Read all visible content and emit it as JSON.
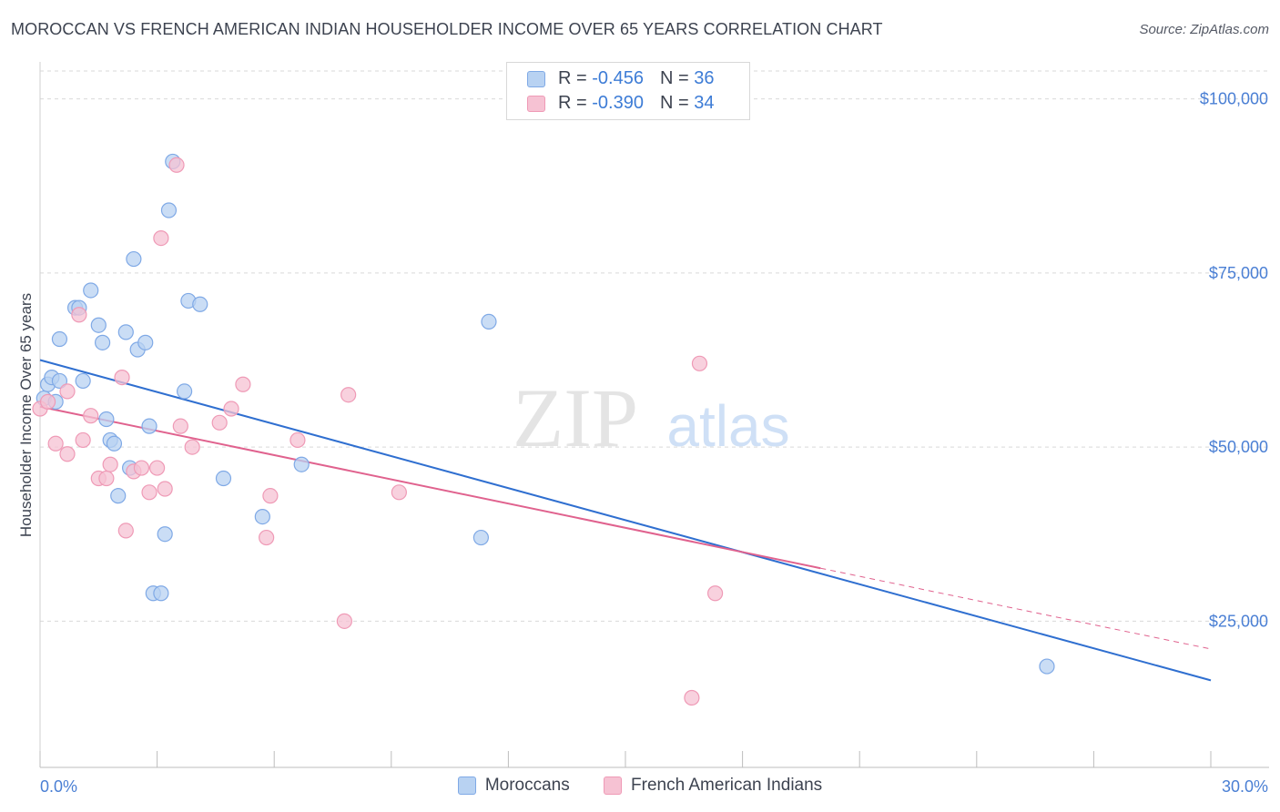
{
  "title": "MOROCCAN VS FRENCH AMERICAN INDIAN HOUSEHOLDER INCOME OVER 65 YEARS CORRELATION CHART",
  "source": "Source: ZipAtlas.com",
  "watermark": {
    "zip": "ZIP",
    "atlas": "atlas"
  },
  "colors": {
    "blue_fill": "#b8d2f2",
    "blue_stroke": "#7fa9e6",
    "blue_line": "#2f6fd0",
    "pink_fill": "#f6c2d3",
    "pink_stroke": "#ef9ab6",
    "pink_line": "#e0628e",
    "tick_text": "#4a7fd4",
    "grid": "#d9d9d9"
  },
  "legend": {
    "rows": [
      {
        "r_label": "R = ",
        "r_value": "-0.456",
        "n_label": "N = ",
        "n_value": "36"
      },
      {
        "r_label": "R = ",
        "r_value": "-0.390",
        "n_label": "N = ",
        "n_value": "34"
      }
    ]
  },
  "bottom_legend": [
    "Moroccans",
    "French American Indians"
  ],
  "chart_data": {
    "type": "scatter",
    "title": "MOROCCAN VS FRENCH AMERICAN INDIAN HOUSEHOLDER INCOME OVER 65 YEARS CORRELATION CHART",
    "xlabel": "",
    "ylabel": "Householder Income Over 65 years",
    "xlim": [
      0,
      30
    ],
    "ylim": [
      4000,
      104000
    ],
    "x_ticks": [
      "0.0%",
      "30.0%"
    ],
    "y_ticks": [
      {
        "value": 25000,
        "label": "$25,000"
      },
      {
        "value": 50000,
        "label": "$50,000"
      },
      {
        "value": 75000,
        "label": "$75,000"
      },
      {
        "value": 100000,
        "label": "$100,000"
      }
    ],
    "grid": true,
    "legend_position": "top-center",
    "series": [
      {
        "name": "Moroccans",
        "points": [
          [
            0.1,
            57000
          ],
          [
            0.2,
            59000
          ],
          [
            0.3,
            60000
          ],
          [
            0.5,
            59500
          ],
          [
            0.5,
            65500
          ],
          [
            0.9,
            70000
          ],
          [
            1.0,
            70000
          ],
          [
            1.1,
            59500
          ],
          [
            1.3,
            72500
          ],
          [
            1.5,
            67500
          ],
          [
            1.6,
            65000
          ],
          [
            1.7,
            54000
          ],
          [
            1.8,
            51000
          ],
          [
            2.0,
            43000
          ],
          [
            2.2,
            66500
          ],
          [
            2.3,
            47000
          ],
          [
            2.4,
            77000
          ],
          [
            2.5,
            64000
          ],
          [
            2.7,
            65000
          ],
          [
            2.8,
            53000
          ],
          [
            2.9,
            29000
          ],
          [
            3.1,
            29000
          ],
          [
            3.2,
            37500
          ],
          [
            3.3,
            84000
          ],
          [
            3.4,
            91000
          ],
          [
            3.7,
            58000
          ],
          [
            3.8,
            71000
          ],
          [
            4.1,
            70500
          ],
          [
            4.7,
            45500
          ],
          [
            5.7,
            40000
          ],
          [
            6.7,
            47500
          ],
          [
            11.5,
            68000
          ],
          [
            11.3,
            37000
          ],
          [
            25.8,
            18500
          ],
          [
            0.4,
            56500
          ],
          [
            1.9,
            50500
          ]
        ],
        "trend": {
          "x": [
            0,
            30
          ],
          "y": [
            62500,
            16500
          ]
        }
      },
      {
        "name": "French American Indians",
        "points": [
          [
            0.0,
            55500
          ],
          [
            0.2,
            56500
          ],
          [
            0.4,
            50500
          ],
          [
            0.7,
            49000
          ],
          [
            0.7,
            58000
          ],
          [
            1.0,
            69000
          ],
          [
            1.1,
            51000
          ],
          [
            1.3,
            54500
          ],
          [
            1.5,
            45500
          ],
          [
            1.7,
            45500
          ],
          [
            1.8,
            47500
          ],
          [
            2.1,
            60000
          ],
          [
            2.2,
            38000
          ],
          [
            2.4,
            46500
          ],
          [
            2.6,
            47000
          ],
          [
            2.8,
            43500
          ],
          [
            3.0,
            47000
          ],
          [
            3.1,
            80000
          ],
          [
            3.2,
            44000
          ],
          [
            3.5,
            90500
          ],
          [
            3.6,
            53000
          ],
          [
            3.9,
            50000
          ],
          [
            4.6,
            53500
          ],
          [
            4.9,
            55500
          ],
          [
            5.2,
            59000
          ],
          [
            5.8,
            37000
          ],
          [
            5.9,
            43000
          ],
          [
            6.6,
            51000
          ],
          [
            7.9,
            57500
          ],
          [
            7.8,
            25000
          ],
          [
            9.2,
            43500
          ],
          [
            16.9,
            62000
          ],
          [
            17.3,
            29000
          ],
          [
            16.7,
            14000
          ]
        ],
        "trend": {
          "x": [
            0,
            20
          ],
          "y": [
            55800,
            32600
          ]
        },
        "trend_dashed": {
          "x": [
            20,
            30
          ],
          "y": [
            32600,
            21000
          ]
        }
      }
    ]
  }
}
